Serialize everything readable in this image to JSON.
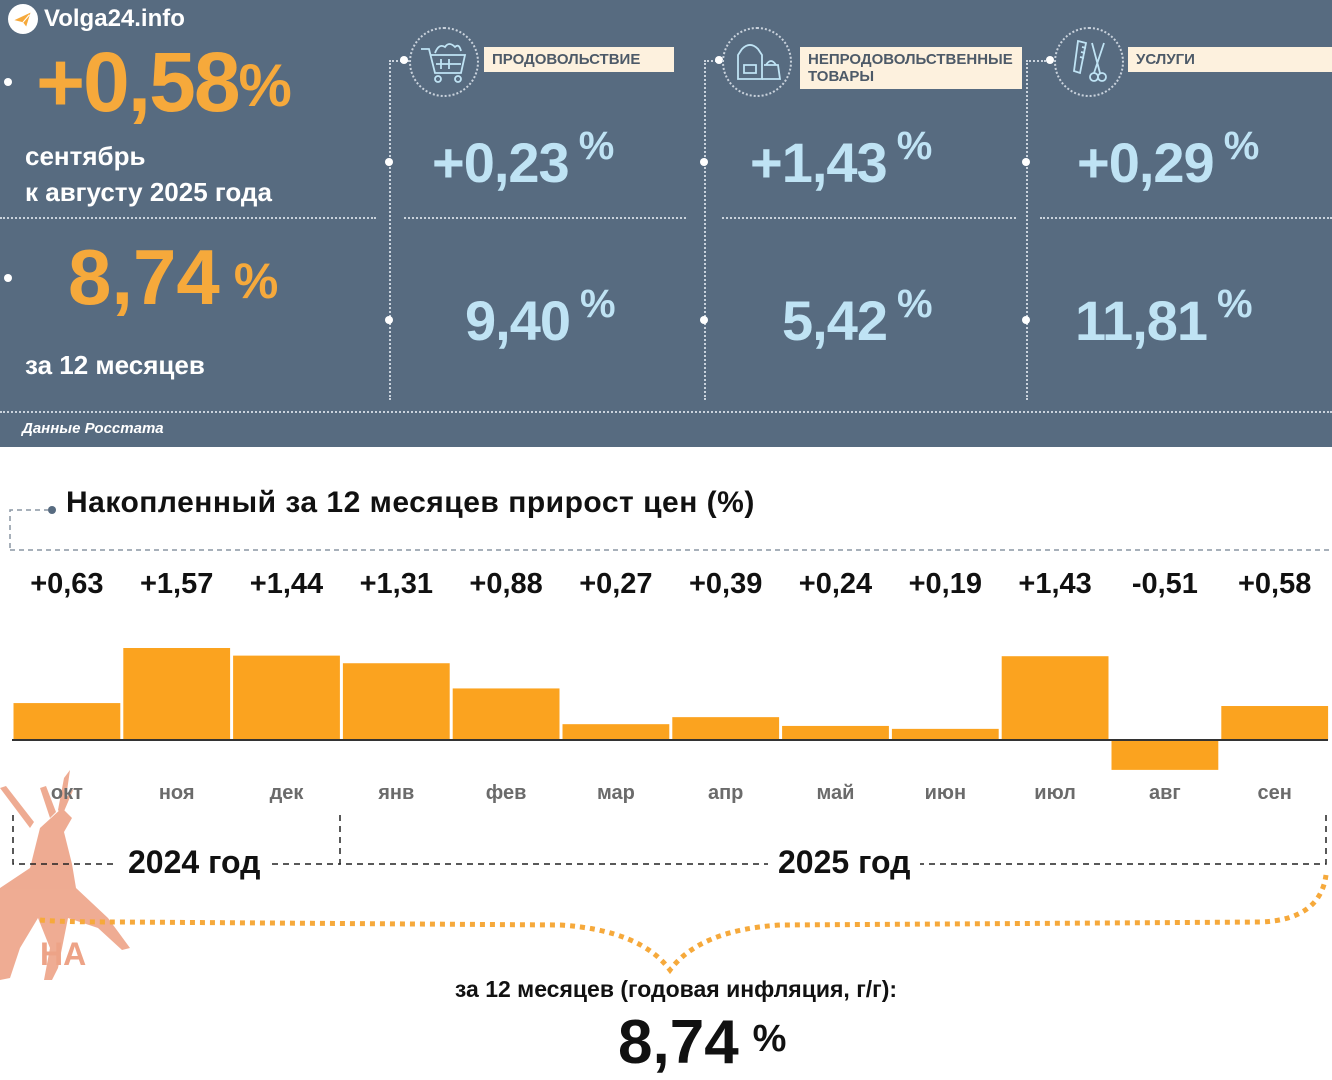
{
  "watermark": {
    "brand": "Volga24.info",
    "logo_icon": "telegram-icon",
    "deer_icon": "deer-icon",
    "deer_text": "НА"
  },
  "summary": {
    "monthly_value": "+0,58",
    "monthly_caption_1": "сентябрь",
    "monthly_caption_2": "к августу 2025 года",
    "annual_value": "8,74",
    "annual_caption": "за 12 месяцев",
    "percent_sign": "%",
    "source": "Данные Росстата"
  },
  "categories": [
    {
      "label": "ПРОДОВОЛЬСТВИЕ",
      "icon": "shopping-cart-icon",
      "monthly": "+0,23",
      "annual": "9,40"
    },
    {
      "label": "НЕПРОДОВОЛЬСТВЕННЫЕ ТОВАРЫ",
      "icon": "clothing-bag-icon",
      "monthly": "+1,43",
      "annual": "5,42"
    },
    {
      "label": "УСЛУГИ",
      "icon": "comb-scissors-icon",
      "monthly": "+0,29",
      "annual": "11,81"
    }
  ],
  "colors": {
    "panel": "#576b80",
    "orange": "#f6a93b",
    "bar": "#fba31f",
    "light_blue": "#bfe3f4",
    "label_bg": "#fdf1de"
  },
  "chart_data": {
    "type": "bar",
    "title": "Накопленный за 12 месяцев прирост цен (%)",
    "categories": [
      "окт",
      "ноя",
      "дек",
      "янв",
      "фев",
      "мар",
      "апр",
      "май",
      "июн",
      "июл",
      "авг",
      "сен"
    ],
    "values": [
      0.63,
      1.57,
      1.44,
      1.31,
      0.88,
      0.27,
      0.39,
      0.24,
      0.19,
      1.43,
      -0.51,
      0.58
    ],
    "value_labels": [
      "+0,63",
      "+1,57",
      "+1,44",
      "+1,31",
      "+0,88",
      "+0,27",
      "+0,39",
      "+0,24",
      "+0,19",
      "+1,43",
      "-0,51",
      "+0,58"
    ],
    "year_groups": [
      {
        "label": "2024 год",
        "months": [
          "окт",
          "ноя",
          "дек"
        ]
      },
      {
        "label": "2025 год",
        "months": [
          "янв",
          "фев",
          "мар",
          "апр",
          "май",
          "июн",
          "июл",
          "авг",
          "сен"
        ]
      }
    ],
    "xlabel": "",
    "ylabel": "",
    "ylim": [
      -0.51,
      1.57
    ],
    "grid": false,
    "legend": "none"
  },
  "footer": {
    "caption": "за 12 месяцев (годовая инфляция, г/г):",
    "value": "8,74",
    "percent_sign": "%"
  }
}
